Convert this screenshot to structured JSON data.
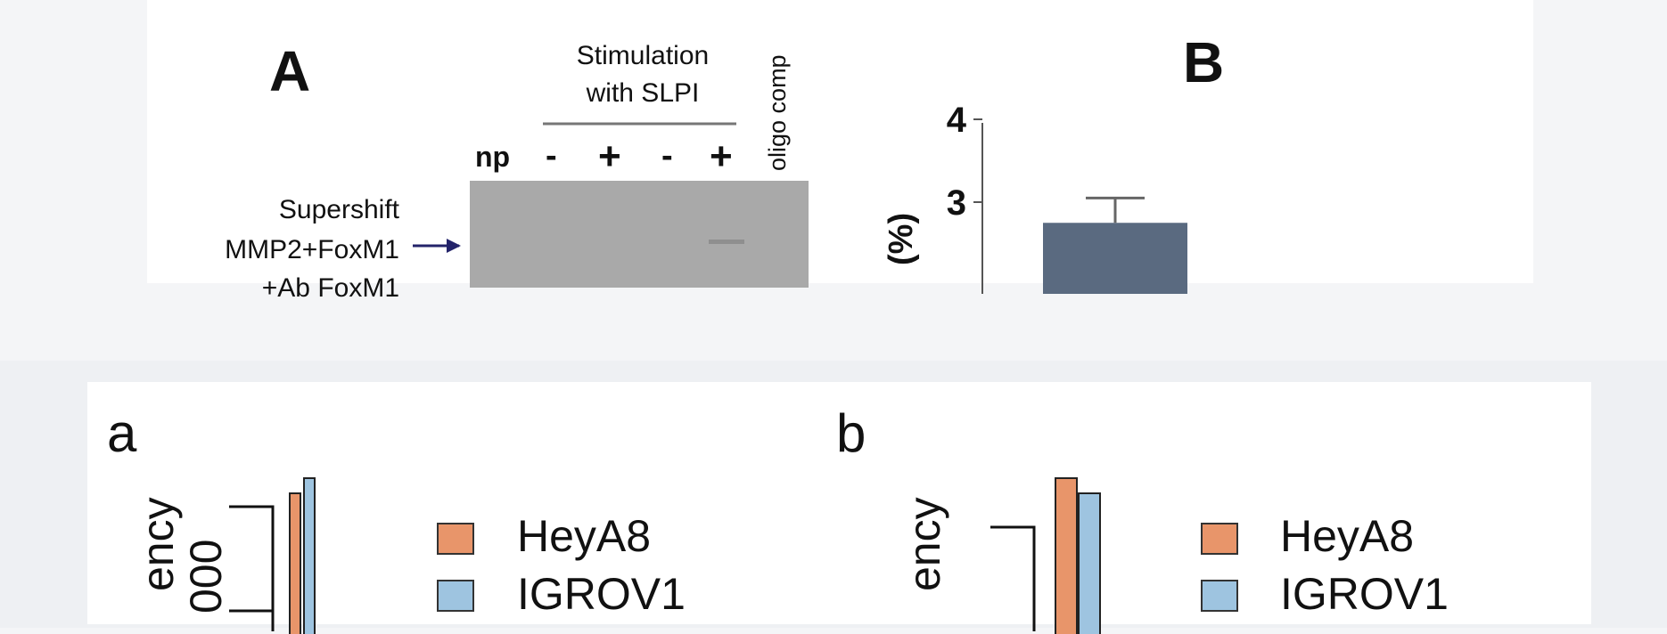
{
  "top_figure": {
    "panel_a": {
      "label": "A",
      "header_line1": "Stimulation",
      "header_line2": "with SLPI",
      "lanes": [
        "np",
        "-",
        "+",
        "-",
        "+"
      ],
      "vertical_label": "oligo comp",
      "band_label_line1": "Supershift",
      "band_label_line2": "MMP2+FoxM1",
      "band_label_line3": "+Ab FoxM1"
    },
    "panel_b": {
      "label": "B",
      "ylabel_visible": "(%)",
      "chart_data": {
        "type": "bar",
        "y_ticks": [
          3,
          4
        ],
        "values": [
          2.75
        ],
        "error": [
          0.3
        ],
        "bar_color": "#5a6a80"
      }
    }
  },
  "bottom_figure": {
    "panel_a": {
      "label": "a",
      "ylabel_fragment": "ency",
      "ylabel_fragment2": "000",
      "legend": [
        {
          "name": "HeyA8",
          "color": "#e8956a"
        },
        {
          "name": "IGROV1",
          "color": "#9ec4e0"
        }
      ],
      "chart_data": {
        "type": "bar",
        "series": [
          {
            "name": "HeyA8",
            "color": "#e8956a"
          },
          {
            "name": "IGROV1",
            "color": "#9ec4e0"
          }
        ]
      }
    },
    "panel_b": {
      "label": "b",
      "ylabel_fragment": "ency",
      "legend": [
        {
          "name": "HeyA8",
          "color": "#e8956a"
        },
        {
          "name": "IGROV1",
          "color": "#9ec4e0"
        }
      ],
      "chart_data": {
        "type": "bar",
        "series": [
          {
            "name": "HeyA8",
            "color": "#e8956a"
          },
          {
            "name": "IGROV1",
            "color": "#9ec4e0"
          }
        ]
      }
    }
  }
}
